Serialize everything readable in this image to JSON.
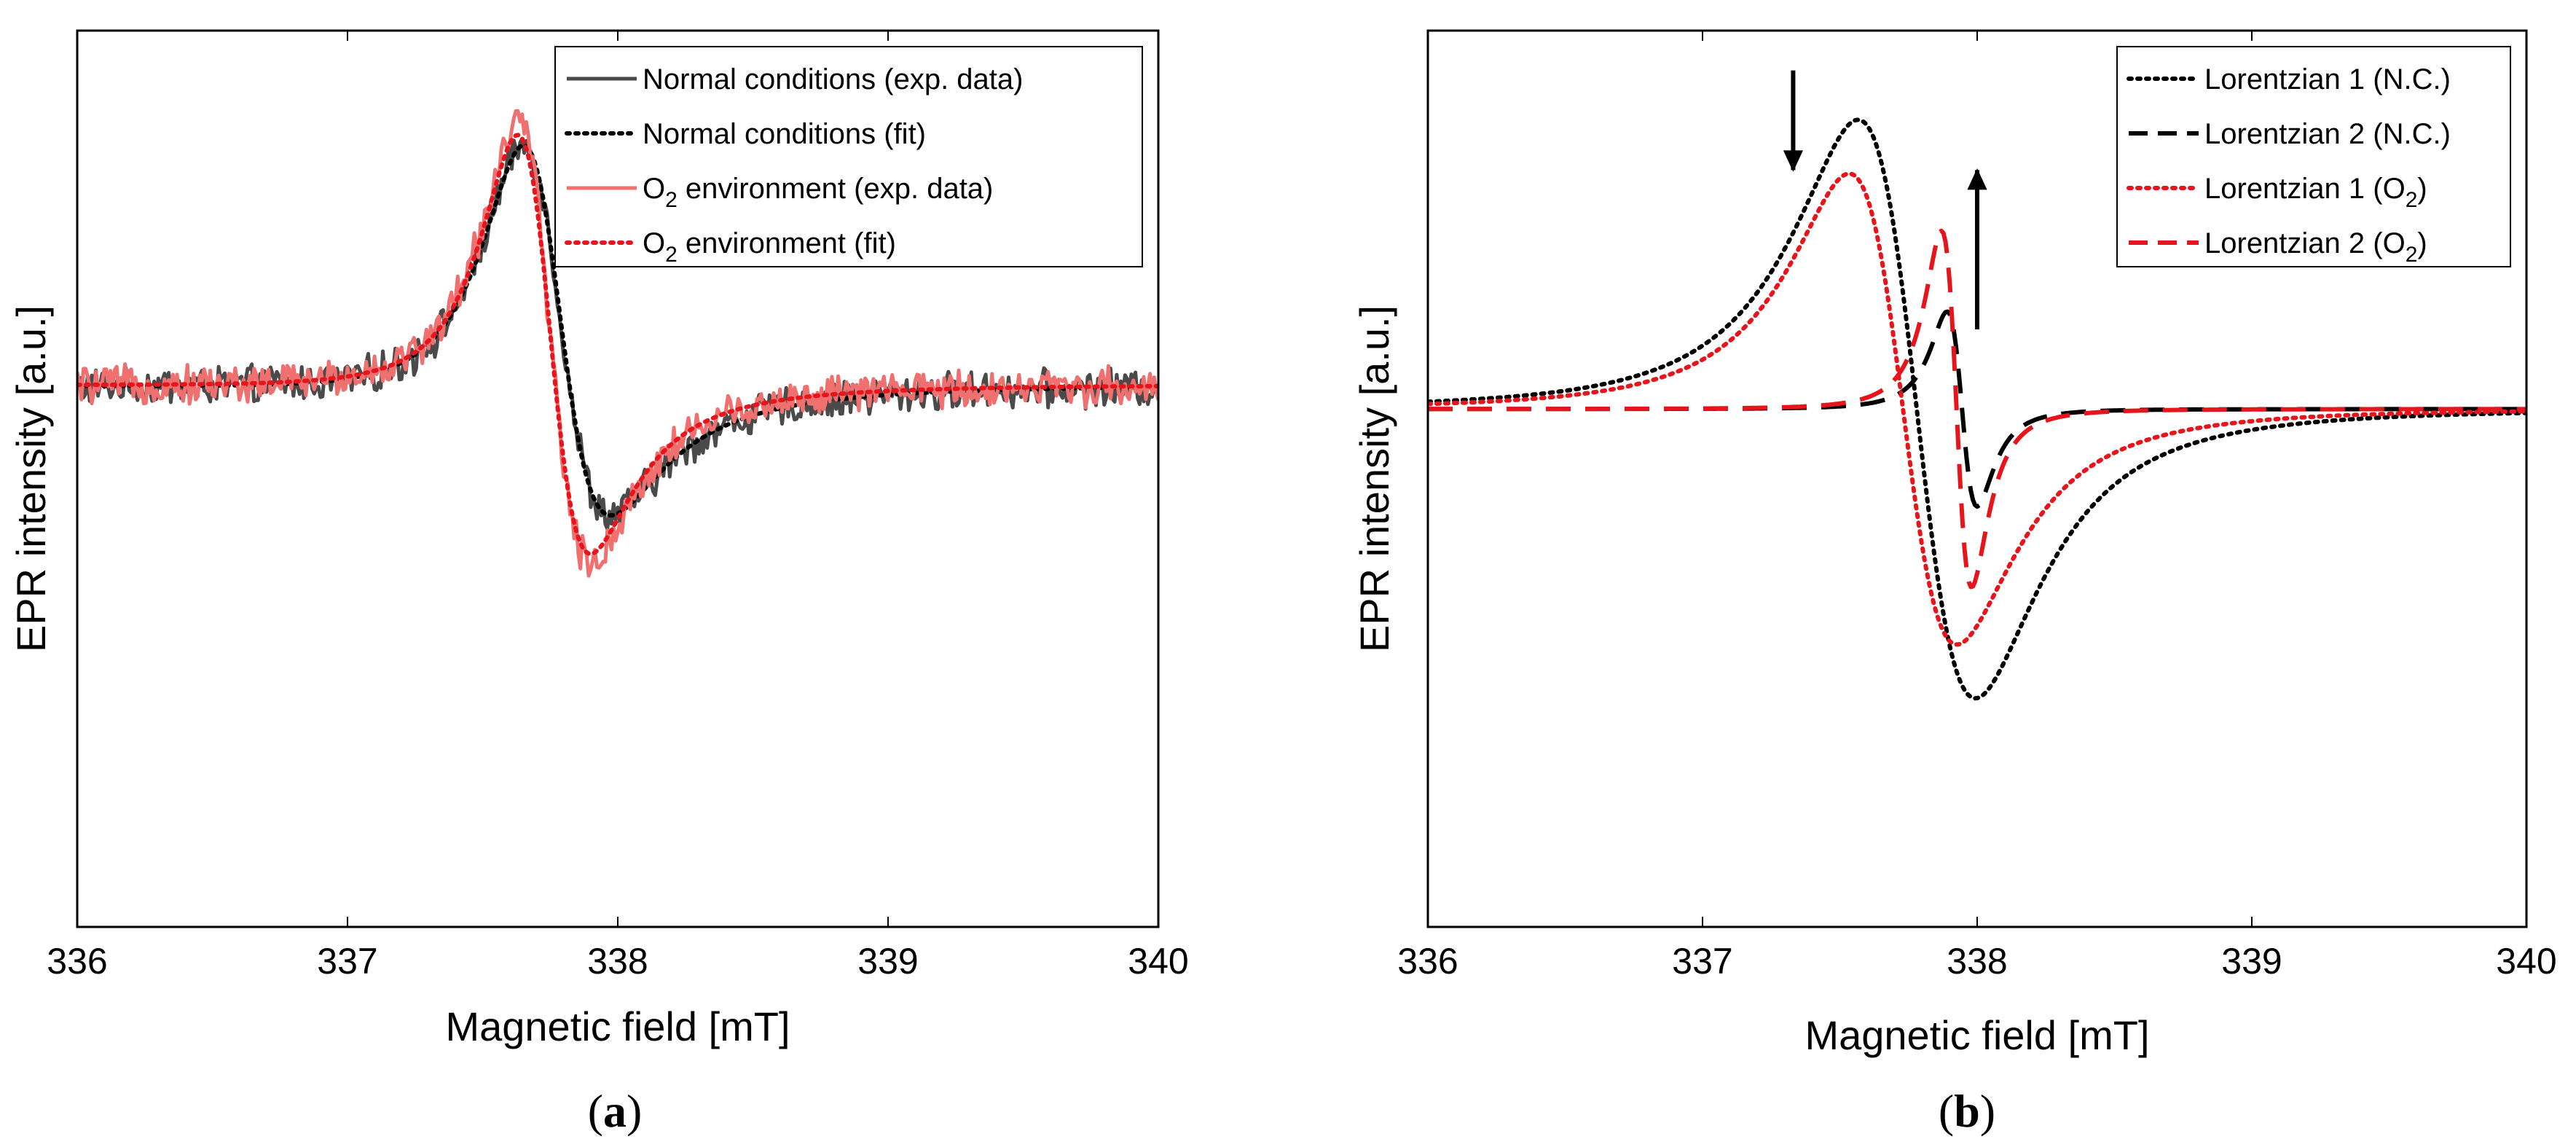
{
  "chart_data": [
    {
      "panel_label": "a",
      "type": "line",
      "xlabel": "Magnetic field [mT]",
      "ylabel": "EPR intensity [a.u.]",
      "xlim": [
        336,
        340
      ],
      "ylim": [
        -1.15,
        0.75
      ],
      "xticks": [
        "336",
        "337",
        "338",
        "339",
        "340"
      ],
      "legend_position": "top-right",
      "series": [
        {
          "name": "Normal conditions (exp. data)",
          "label_main": "Normal conditions (exp. data)",
          "label_sub": "",
          "label_tail": "",
          "style": "solid",
          "color": "#4a4a4a",
          "model": "dysonian",
          "x0": 337.75,
          "gamma": 0.27,
          "alpha": 0.62,
          "amp": 1.08,
          "offset": 0.0,
          "noise": 0.035
        },
        {
          "name": "Normal conditions (fit)",
          "label_main": "Normal conditions (fit)",
          "label_sub": "",
          "label_tail": "",
          "style": "dotted",
          "color": "#000000",
          "model": "dysonian",
          "x0": 337.75,
          "gamma": 0.27,
          "alpha": 0.62,
          "amp": 1.08,
          "offset": 0.0,
          "noise": 0
        },
        {
          "name": "O2 environment (exp. data)",
          "label_main": "O",
          "label_sub": "2",
          "label_tail": " environment (exp. data)",
          "style": "solid",
          "color": "#f07070",
          "model": "dysonian",
          "x0": 337.73,
          "gamma": 0.23,
          "alpha": 0.5,
          "amp": 1.05,
          "offset": 0.0,
          "noise": 0.035
        },
        {
          "name": "O2 environment (fit)",
          "label_main": "O",
          "label_sub": "2",
          "label_tail": " environment (fit)",
          "style": "dotted",
          "color": "#e8141b",
          "model": "dysonian",
          "x0": 337.73,
          "gamma": 0.23,
          "alpha": 0.5,
          "amp": 1.0,
          "offset": 0.0,
          "noise": 0
        }
      ],
      "annotations": []
    },
    {
      "panel_label": "b",
      "type": "line",
      "xlabel": "Magnetic field [mT]",
      "ylabel": "EPR intensity [a.u.]",
      "xlim": [
        336,
        340
      ],
      "ylim": [
        -1.3,
        0.95
      ],
      "xticks": [
        "336",
        "337",
        "338",
        "339",
        "340"
      ],
      "legend_position": "top-right",
      "series": [
        {
          "name": "Lorentzian 1 (N.C.)",
          "label_main": "Lorentzian 1 (N.C.)",
          "label_sub": "",
          "label_tail": "",
          "style": "dotted",
          "color": "#000000",
          "model": "derivative",
          "x0": 337.78,
          "gamma": 0.37,
          "amp": 0.86,
          "offset": 0.0,
          "noise": 0
        },
        {
          "name": "Lorentzian 2 (N.C.)",
          "label_main": "Lorentzian 2 (N.C.)",
          "label_sub": "",
          "label_tail": "",
          "style": "dashed",
          "color": "#000000",
          "model": "derivative",
          "x0": 337.945,
          "gamma": 0.095,
          "amp": 0.29,
          "offset": 0.0,
          "noise": 0
        },
        {
          "name": "Lorentzian 1 (O2)",
          "label_main": "Lorentzian 1 (O",
          "label_sub": "2",
          "label_tail": ")",
          "style": "dotted",
          "color": "#e8141b",
          "model": "derivative",
          "x0": 337.73,
          "gamma": 0.34,
          "amp": 0.7,
          "offset": 0.0,
          "noise": 0
        },
        {
          "name": "Lorentzian 2 (O2)",
          "label_main": "Lorentzian 2 (O",
          "label_sub": "2",
          "label_tail": ")",
          "style": "dashed",
          "color": "#e8141b",
          "model": "derivative",
          "x0": 337.925,
          "gamma": 0.095,
          "amp": 0.53,
          "offset": 0.0,
          "noise": 0
        }
      ],
      "annotations": [
        {
          "name": "down-arrow",
          "direction": "down",
          "x": 337.33,
          "y_from": 0.85,
          "y_to": 0.6,
          "color": "#000000"
        },
        {
          "name": "up-arrow",
          "direction": "up",
          "x": 338.0,
          "y_from": 0.2,
          "y_to": 0.6,
          "color": "#000000"
        }
      ]
    }
  ]
}
